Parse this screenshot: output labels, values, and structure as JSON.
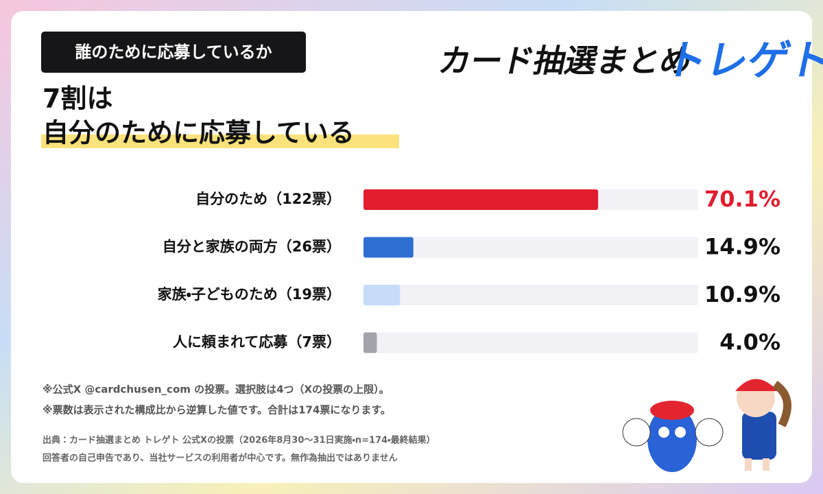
{
  "header": {
    "tag": "誰のために応募しているか",
    "headline": [
      "7割は",
      "自分のために応募している"
    ],
    "logo": [
      "カード抽選まとめ",
      "トレゲト"
    ]
  },
  "chart_data": {
    "type": "bar",
    "orientation": "horizontal",
    "categories": [
      "自分のため（122票）",
      "自分と家族の両方（26票）",
      "家族・子どものため（19票）",
      "人に頼まれて応募（7票）"
    ],
    "values": [
      70.1,
      14.9,
      10.9,
      4.0
    ],
    "value_labels": [
      "70.1%",
      "14.9%",
      "10.9%",
      "4.0%"
    ],
    "colors": [
      "#e11d2e",
      "#2f6fd2",
      "#c6dcf8",
      "#a3a3ab"
    ],
    "value_label_colors": [
      "#e11d2e",
      "#111111",
      "#111111",
      "#111111"
    ],
    "xlim": [
      0,
      100
    ]
  },
  "notes": [
    "※公式X @cardchusen_com の投票。選択肢は4つ（Xの投票の上限）。",
    "※票数は表示された構成比から逆算した値です。合計は174票になります。"
  ],
  "source": [
    "出典：カード抽選まとめ トレゲト 公式Xの投票（2026年8月30〜31日実施・n=174・最終結果）",
    "回答者の自己申告であり、当社サービスの利用者が中心です。無作為抽出ではありません"
  ]
}
